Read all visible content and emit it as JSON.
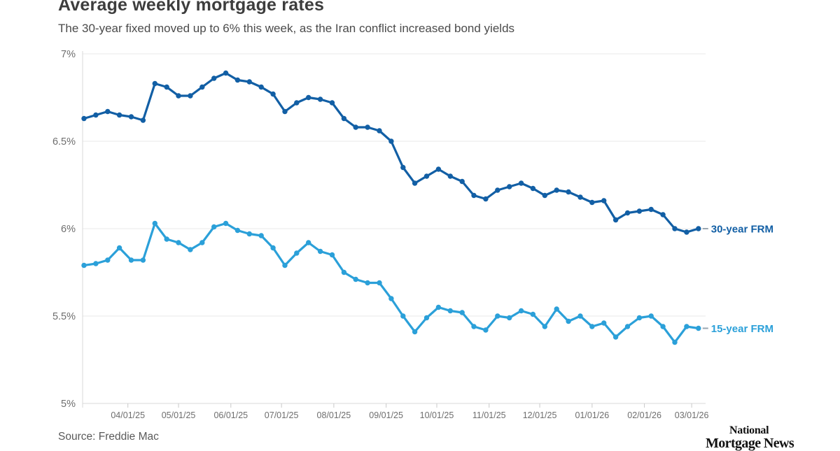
{
  "header": {
    "title": "Average weekly mortgage rates",
    "subtitle": "The 30-year fixed moved up to 6% this week, as the Iran conflict increased bond yields"
  },
  "chart_data": {
    "type": "line",
    "title": "Average weekly mortgage rates",
    "subtitle": "The 30-year fixed moved up to 6% this week, as the Iran conflict increased bond yields",
    "x_start_date": "03/06/25",
    "x_interval_days": 7,
    "x_tick_labels": [
      "04/01/25",
      "05/01/25",
      "06/01/25",
      "07/01/25",
      "08/01/25",
      "09/01/25",
      "10/01/25",
      "11/01/25",
      "12/01/25",
      "01/01/26",
      "02/01/26",
      "03/01/26"
    ],
    "y_tick_labels": [
      "7%",
      "6.5%",
      "6%",
      "5.5%",
      "5%"
    ],
    "ylim": [
      5,
      7
    ],
    "grid": true,
    "legend_position": "end-of-line-labels",
    "colors": {
      "grid": "#e8e8e8",
      "axis": "#d9d9d9",
      "tick": "#c9c9c9",
      "axis_text": "#6e6e6e",
      "label_dash": "#9aa6b0"
    },
    "series": [
      {
        "name": "30-year FRM",
        "color": "#125fa5",
        "values": [
          6.63,
          6.65,
          6.67,
          6.65,
          6.64,
          6.62,
          6.83,
          6.81,
          6.76,
          6.76,
          6.81,
          6.86,
          6.89,
          6.85,
          6.84,
          6.81,
          6.77,
          6.67,
          6.72,
          6.75,
          6.74,
          6.72,
          6.63,
          6.58,
          6.58,
          6.56,
          6.5,
          6.35,
          6.26,
          6.3,
          6.34,
          6.3,
          6.27,
          6.19,
          6.17,
          6.22,
          6.24,
          6.26,
          6.23,
          6.19,
          6.22,
          6.21,
          6.18,
          6.15,
          6.16,
          6.05,
          6.09,
          6.1,
          6.11,
          6.08,
          6.0,
          5.98,
          6.0
        ]
      },
      {
        "name": "15-year FRM",
        "color": "#2ba0d9",
        "values": [
          5.79,
          5.8,
          5.82,
          5.89,
          5.82,
          5.82,
          6.03,
          5.94,
          5.92,
          5.88,
          5.92,
          6.01,
          6.03,
          5.99,
          5.97,
          5.96,
          5.89,
          5.79,
          5.86,
          5.92,
          5.87,
          5.85,
          5.75,
          5.71,
          5.69,
          5.69,
          5.6,
          5.5,
          5.41,
          5.49,
          5.55,
          5.53,
          5.52,
          5.44,
          5.42,
          5.5,
          5.49,
          5.53,
          5.51,
          5.44,
          5.54,
          5.47,
          5.5,
          5.44,
          5.46,
          5.38,
          5.44,
          5.49,
          5.5,
          5.44,
          5.35,
          5.44,
          5.43
        ]
      }
    ]
  },
  "footer": {
    "source": "Source: Freddie Mac",
    "logo_line1": "National",
    "logo_line2": "Mortgage News"
  }
}
